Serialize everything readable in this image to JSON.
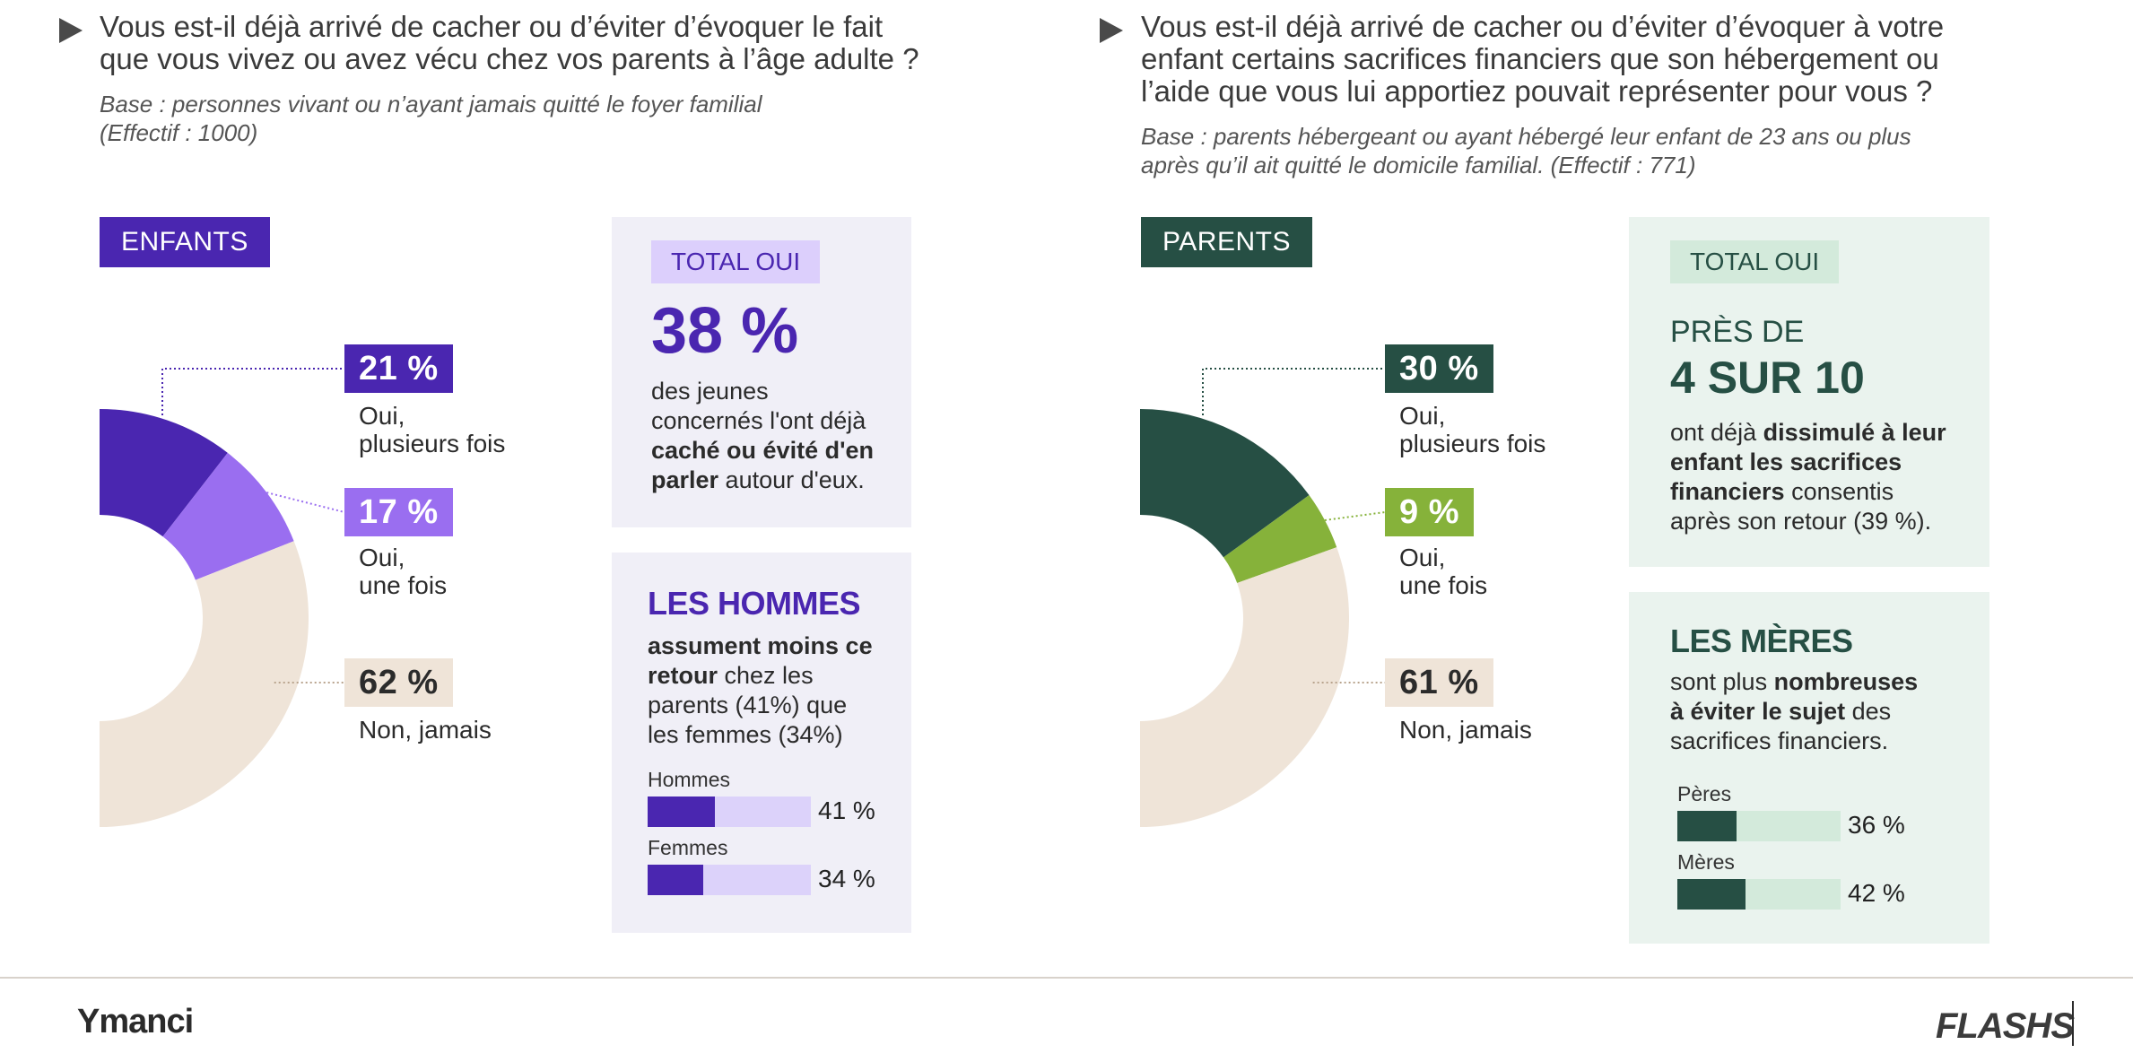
{
  "colors": {
    "enfants_primary": "#4a26b0",
    "enfants_secondary": "#9a6ef0",
    "parents_primary": "#264f44",
    "parents_secondary": "#86b23a",
    "jamais": "#efe4d8"
  },
  "left": {
    "question_l1": "Vous est-il déjà arrivé de cacher ou d’éviter d’évoquer le fait",
    "question_l2": "que vous vivez ou avez vécu chez vos parents à l’âge adulte ?",
    "base_l1": "Base : personnes vivant ou n’ayant jamais quitté le foyer familial",
    "base_l2": "(Effectif : 1000)",
    "tag": "ENFANTS",
    "badges": [
      "21 %",
      "17 %",
      "62 %"
    ],
    "answers": [
      "Oui,\nplusieurs fois",
      "Oui,\nune fois",
      "Non, jamais"
    ],
    "card1": {
      "pill": "TOTAL OUI",
      "big": "38 %",
      "t1": "des jeunes",
      "t2": "concernés l'ont déjà",
      "t3b": "caché ou évité d'en",
      "t4b": "parler",
      "t4": " autour d'eux."
    },
    "card2": {
      "heading": "LES HOMMES",
      "t1b": "assument moins ce",
      "t2b": "retour",
      "t2": " chez les",
      "t3": "parents (41%) que",
      "t4": "les femmes (34%)",
      "bar1_label": "Hommes",
      "bar1_value": "41 %",
      "bar2_label": "Femmes",
      "bar2_value": "34 %"
    }
  },
  "right": {
    "question_l1": "Vous est-il déjà arrivé de cacher ou d’éviter d’évoquer à votre",
    "question_l2": "enfant certains sacrifices financiers que son hébergement ou",
    "question_l3": "l’aide que vous lui apportiez pouvait représenter pour vous ?",
    "base_l1": "Base : parents hébergeant ou ayant hébergé leur enfant de 23 ans ou plus",
    "base_l2": "après qu’il ait quitté le domicile familial. (Effectif : 771)",
    "tag": "PARENTS",
    "badges": [
      "30 %",
      "9 %",
      "61 %"
    ],
    "answers": [
      "Oui,\nplusieurs fois",
      "Oui,\nune fois",
      "Non, jamais"
    ],
    "card1": {
      "pill": "TOTAL OUI",
      "pre": "PRÈS DE",
      "big": "4 SUR 10",
      "t1": "ont déjà ",
      "t1b": "dissimulé à leur",
      "t2b": "enfant les sacrifices",
      "t3b": "financiers",
      "t3": " consentis",
      "t4": "après son retour (39 %)."
    },
    "card2": {
      "heading": "LES MÈRES",
      "t1": "sont plus ",
      "t1b": "nombreuses",
      "t2b": "à éviter le sujet",
      "t2": " des",
      "t3": "sacrifices financiers.",
      "bar1_label": "Pères",
      "bar1_value": "36 %",
      "bar2_label": "Mères",
      "bar2_value": "42 %"
    }
  },
  "footer": {
    "logo": "Ymanci",
    "brand": "FLASHS"
  },
  "chart_data": [
    {
      "type": "pie",
      "categories": [
        "Oui, plusieurs fois",
        "Oui, une fois",
        "Non, jamais"
      ],
      "values": [
        21,
        17,
        62
      ],
      "labels": [
        "21 %",
        "17 %",
        "62 %"
      ],
      "title": "ENFANTS",
      "bars": {
        "type": "bar",
        "categories": [
          "Hommes",
          "Femmes"
        ],
        "values": [
          41,
          34
        ]
      }
    },
    {
      "type": "pie",
      "categories": [
        "Oui, plusieurs fois",
        "Oui, une fois",
        "Non, jamais"
      ],
      "values": [
        30,
        9,
        61
      ],
      "labels": [
        "30 %",
        "9 %",
        "61 %"
      ],
      "title": "PARENTS",
      "bars": {
        "type": "bar",
        "categories": [
          "Pères",
          "Mères"
        ],
        "values": [
          36,
          42
        ]
      }
    }
  ]
}
